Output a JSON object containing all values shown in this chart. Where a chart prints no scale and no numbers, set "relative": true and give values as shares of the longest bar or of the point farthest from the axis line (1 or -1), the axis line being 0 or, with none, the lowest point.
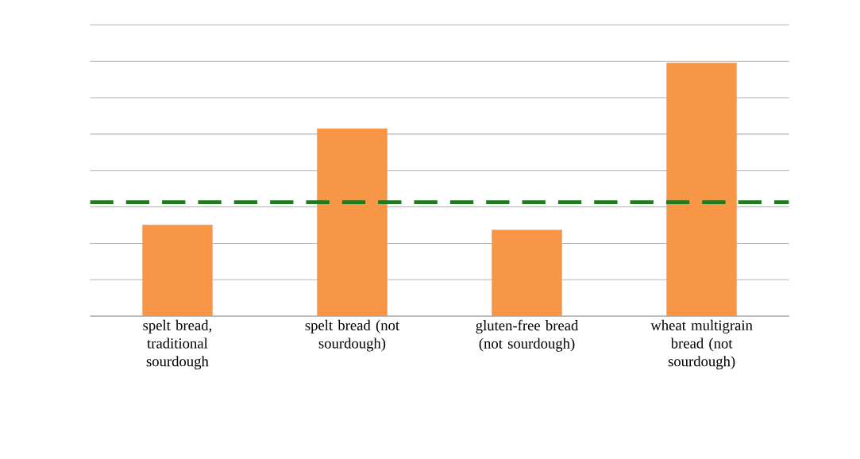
{
  "chart_data": {
    "type": "bar",
    "relative": true,
    "categories": [
      "spelt bread, traditional sourdough",
      "spelt bread (not sourdough)",
      "gluten-free bread (not sourdough)",
      "wheat multigrain bread (not sourdough)"
    ],
    "values": [
      0.36,
      0.74,
      0.34,
      1
    ],
    "color": "#f79646",
    "grid": "y",
    "ref_lines": [
      {
        "axis": "y",
        "value": 0.45,
        "color": "#1e7b1e",
        "line_style": "dashed"
      }
    ]
  }
}
